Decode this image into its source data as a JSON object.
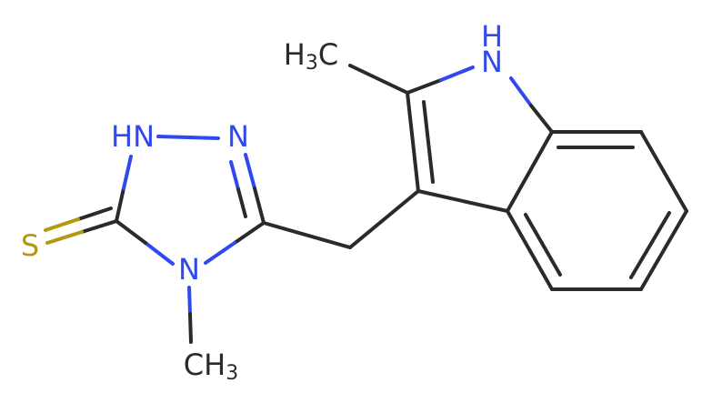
{
  "atoms": [
    {
      "text": "HN"
    },
    {
      "text": "N"
    },
    {
      "text": "S"
    },
    {
      "text": "N"
    },
    {
      "parts": [
        "CH",
        "3"
      ]
    },
    {
      "parts": [
        "H",
        "3",
        "C"
      ]
    },
    {
      "text": "H"
    },
    {
      "text": "N"
    }
  ]
}
